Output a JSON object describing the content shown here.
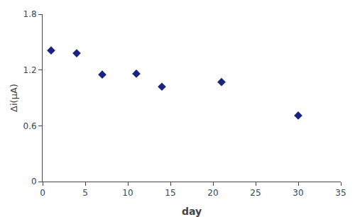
{
  "chart_data": {
    "type": "scatter",
    "x": [
      1,
      4,
      7,
      11,
      14,
      21,
      30
    ],
    "values": [
      1.41,
      1.38,
      1.15,
      1.16,
      1.02,
      1.07,
      0.71
    ],
    "color": "#1a237e",
    "marker": "diamond",
    "xlabel": "day",
    "ylabel": "Δi(μA)",
    "xlim": [
      0,
      35
    ],
    "ylim": [
      0,
      1.8
    ],
    "xticks": [
      0,
      5,
      10,
      15,
      20,
      25,
      30,
      35
    ],
    "yticks": [
      0,
      0.6,
      1.2,
      1.8
    ],
    "grid": false
  }
}
